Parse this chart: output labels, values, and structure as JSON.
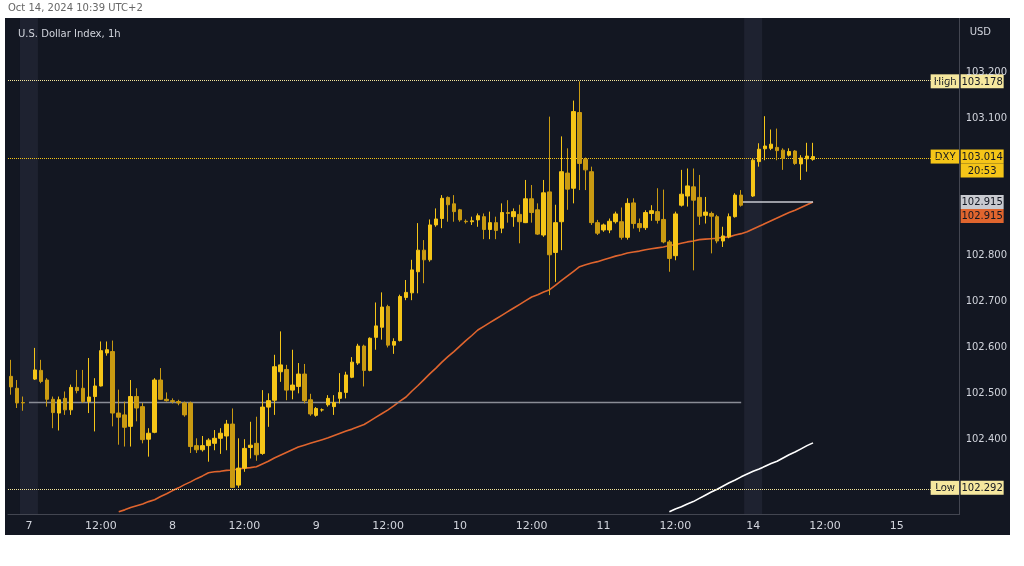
{
  "chart_data": {
    "type": "candlestick",
    "title": "U.S. Dollar Index, 1h",
    "ylabel": "USD",
    "colors": [
      "#c99a12",
      "#c99a12",
      "#c99a12",
      null,
      "#f5c518",
      "#c99a12",
      "#c99a12",
      "#c99a12",
      "#f5c518",
      "#c99a12",
      "#f5c518",
      "#c99a12",
      "#c99a12",
      "#f5c518",
      "#f5c518",
      "#f5c518",
      "#f5c518",
      "#c99a12",
      "#c99a12",
      "#c99a12",
      "#f5c518",
      "#c99a12",
      "#c99a12",
      "#f5c518",
      "#f5c518",
      "#c99a12",
      "#c99a12",
      "#c99a12",
      "#c99a12",
      "#c99a12",
      "#c99a12",
      "#c99a12",
      "#f5c518",
      "#f5c518",
      "#f5c518",
      "#f5c518",
      "#f5c518",
      "#c99a12",
      "#f5c518",
      "#f5c518",
      "#f5c518",
      "#c99a12",
      "#f5c518",
      "#f5c518",
      "#f5c518",
      "#f5c518",
      "#c99a12",
      "#f5c518",
      "#f5c518",
      "#c99a12",
      "#c99a12",
      "#f5c518",
      "#f5c518",
      "#f5c518",
      "#f5c518",
      "#f5c518",
      "#f5c518",
      "#f5c518",
      "#f5c518",
      "#c99a12",
      "#f5c518",
      "#f5c518",
      "#f5c518",
      "#c99a12",
      "#f5c518",
      "#f5c518",
      "#f5c518",
      "#f5c518",
      "#f5c518",
      "#c99a12",
      "#f5c518",
      "#f5c518",
      "#f5c518",
      "#c99a12",
      "#c99a12",
      "#c99a12",
      "#c99a12",
      "#f5c518",
      "#f5c518",
      "#c99a12",
      "#f5c518",
      "#c99a12",
      "#f5c518",
      "#c99a12",
      "#f5c518",
      "#c99a12",
      "#f5c518",
      "#c99a12",
      "#c99a12",
      "#f5c518",
      "#c99a12",
      "#f5c518",
      "#f5c518",
      "#c99a12",
      "#f5c518",
      "#c99a12",
      "#c99a12",
      "#c99a12",
      "#c99a12",
      "#f5c518",
      "#f5c518",
      "#f5c518",
      "#c99a12",
      "#f5c518",
      "#c99a12",
      "#c99a12",
      "#f5c518",
      "#f5c518",
      "#c99a12",
      "#c99a12",
      "#c99a12",
      "#f5c518",
      "#f5c518",
      "#f5c518",
      "#c99a12",
      "#c99a12",
      "#f5c518",
      "#c99a12",
      "#c99a12",
      "#f5c518",
      "#f5c518",
      "#f5c518",
      "#c99a12",
      null,
      "#f5c518",
      "#f5c518",
      "#f5c518",
      "#f5c518",
      "#c99a12",
      "#c99a12",
      "#f5c518",
      "#c99a12",
      "#f5c518",
      "#f5c518",
      "#f5c518",
      null,
      null,
      null,
      null,
      null,
      null,
      null,
      null,
      null,
      null,
      null,
      null,
      null,
      null,
      null,
      null,
      null,
      null,
      null,
      null,
      null,
      null,
      null,
      null
    ],
    "annotations": [
      "Oct 14, 2024 10:39 UTC+2",
      {
        "text": "103.178",
        "y": 103.178
      },
      {
        "text": "103.014",
        "y": 103.014
      },
      "20:53",
      {
        "text": "102.915",
        "y": 102.915
      },
      "102.915",
      {
        "text": "102.292",
        "y": 102.292
      }
    ],
    "categories": [
      null,
      null,
      null,
      "7",
      null,
      null,
      null,
      null,
      null,
      null,
      null,
      null,
      null,
      null,
      null,
      "12:00",
      null,
      null,
      null,
      null,
      null,
      null,
      null,
      null,
      null,
      null,
      null,
      "8",
      null,
      null,
      null,
      null,
      null,
      null,
      null,
      null,
      null,
      null,
      null,
      "12:00",
      null,
      null,
      null,
      null,
      null,
      null,
      null,
      null,
      null,
      null,
      null,
      "9",
      null,
      null,
      null,
      null,
      null,
      null,
      null,
      null,
      null,
      null,
      null,
      "12:00",
      null,
      null,
      null,
      null,
      null,
      null,
      null,
      null,
      null,
      null,
      null,
      "10",
      null,
      null,
      null,
      null,
      null,
      null,
      null,
      null,
      null,
      null,
      null,
      "12:00",
      null,
      null,
      null,
      null,
      null,
      null,
      null,
      null,
      null,
      null,
      null,
      "11",
      null,
      null,
      null,
      null,
      null,
      null,
      null,
      null,
      null,
      null,
      null,
      "12:00",
      null,
      null,
      null,
      null,
      null,
      null,
      null,
      null,
      null,
      null,
      null,
      null,
      "14",
      null,
      null,
      null,
      null,
      null,
      null,
      null,
      null,
      null,
      null,
      null,
      "12:00",
      null,
      null,
      null,
      null,
      null,
      null,
      null,
      null,
      null,
      null,
      null,
      "15",
      null,
      null,
      null,
      null,
      null,
      null,
      null,
      null,
      null,
      null
    ],
    "ohlc": [
      [
        102.535,
        102.571,
        102.495,
        102.512
      ],
      [
        102.509,
        102.527,
        102.466,
        102.477
      ],
      [
        102.478,
        102.491,
        102.46,
        102.477
      ],
      null,
      [
        102.529,
        102.597,
        102.527,
        102.549
      ],
      [
        102.548,
        102.571,
        102.52,
        102.524
      ],
      [
        102.527,
        102.531,
        102.469,
        102.485
      ],
      [
        102.485,
        102.491,
        102.422,
        102.456
      ],
      [
        102.455,
        102.491,
        102.417,
        102.484
      ],
      [
        102.487,
        102.502,
        102.451,
        102.462
      ],
      [
        102.462,
        102.517,
        102.451,
        102.511
      ],
      [
        102.511,
        102.549,
        102.498,
        102.504
      ],
      [
        102.509,
        102.549,
        102.477,
        102.48
      ],
      [
        102.48,
        102.575,
        102.455,
        102.49
      ],
      [
        102.491,
        102.531,
        102.415,
        102.514
      ],
      [
        102.514,
        102.611,
        102.513,
        102.591
      ],
      [
        102.586,
        102.611,
        102.58,
        102.593
      ],
      [
        102.589,
        102.613,
        102.426,
        102.455
      ],
      [
        102.455,
        102.506,
        102.386,
        102.446
      ],
      [
        102.451,
        102.48,
        102.382,
        102.424
      ],
      [
        102.426,
        102.527,
        102.382,
        102.491
      ],
      [
        102.491,
        102.509,
        102.437,
        102.466
      ],
      [
        102.469,
        102.477,
        102.389,
        102.397
      ],
      [
        102.398,
        102.422,
        102.36,
        102.411
      ],
      [
        102.413,
        102.531,
        102.411,
        102.527
      ],
      [
        102.527,
        102.553,
        102.484,
        102.485
      ],
      [
        102.485,
        102.5,
        102.48,
        102.482
      ],
      [
        102.482,
        102.487,
        102.476,
        102.48
      ],
      [
        102.48,
        102.484,
        102.472,
        102.477
      ],
      [
        102.477,
        102.48,
        102.447,
        102.451
      ],
      [
        102.477,
        102.48,
        102.368,
        102.382
      ],
      [
        102.384,
        102.4,
        102.368,
        102.375
      ],
      [
        102.375,
        102.405,
        102.371,
        102.384
      ],
      [
        102.384,
        102.4,
        102.349,
        102.396
      ],
      [
        102.389,
        102.418,
        102.374,
        102.4
      ],
      [
        102.4,
        102.422,
        102.366,
        102.411
      ],
      [
        102.405,
        102.44,
        102.374,
        102.431
      ],
      [
        102.431,
        102.465,
        102.293,
        102.293
      ],
      [
        102.298,
        102.4,
        102.292,
        102.335
      ],
      [
        102.335,
        102.398,
        102.327,
        102.378
      ],
      [
        102.38,
        102.436,
        102.356,
        102.385
      ],
      [
        102.389,
        102.447,
        102.351,
        102.364
      ],
      [
        102.367,
        102.505,
        102.364,
        102.468
      ],
      [
        102.468,
        102.498,
        102.425,
        102.482
      ],
      [
        102.483,
        102.582,
        102.451,
        102.556
      ],
      [
        102.545,
        102.633,
        102.523,
        102.56
      ],
      [
        102.55,
        102.56,
        102.483,
        102.505
      ],
      [
        102.505,
        102.593,
        102.485,
        102.516
      ],
      [
        102.513,
        102.564,
        102.498,
        102.54
      ],
      [
        102.54,
        102.562,
        102.476,
        102.482
      ],
      [
        102.484,
        102.497,
        102.449,
        102.453
      ],
      [
        102.45,
        102.468,
        102.447,
        102.465
      ],
      [
        102.462,
        102.465,
        102.458,
        102.462
      ],
      [
        102.473,
        102.494,
        102.469,
        102.487
      ],
      [
        102.469,
        102.494,
        102.451,
        102.478
      ],
      [
        102.487,
        102.542,
        102.476,
        102.5
      ],
      [
        102.5,
        102.545,
        102.487,
        102.538
      ],
      [
        102.533,
        102.577,
        102.531,
        102.566
      ],
      [
        102.564,
        102.606,
        102.56,
        102.601
      ],
      [
        102.601,
        102.604,
        102.513,
        102.548
      ],
      [
        102.548,
        102.62,
        102.546,
        102.618
      ],
      [
        102.62,
        102.696,
        102.593,
        102.645
      ],
      [
        102.642,
        102.718,
        102.615,
        102.686
      ],
      [
        102.687,
        102.691,
        102.598,
        102.603
      ],
      [
        102.603,
        102.618,
        102.584,
        102.611
      ],
      [
        102.613,
        102.713,
        102.611,
        102.709
      ],
      [
        102.707,
        102.745,
        102.701,
        102.718
      ],
      [
        102.717,
        102.789,
        102.701,
        102.767
      ],
      [
        102.763,
        102.869,
        102.716,
        102.81
      ],
      [
        102.81,
        102.832,
        102.738,
        102.789
      ],
      [
        102.789,
        102.877,
        102.785,
        102.865
      ],
      [
        102.865,
        102.901,
        102.861,
        102.878
      ],
      [
        102.879,
        102.93,
        102.858,
        102.923
      ],
      [
        102.925,
        102.927,
        102.872,
        102.909
      ],
      [
        102.911,
        102.93,
        102.872,
        102.894
      ],
      [
        102.898,
        102.9,
        102.872,
        102.876
      ],
      [
        102.873,
        102.877,
        102.868,
        102.872
      ],
      [
        102.872,
        102.883,
        102.865,
        102.874
      ],
      [
        102.876,
        102.89,
        102.861,
        102.885
      ],
      [
        102.883,
        102.89,
        102.834,
        102.855
      ],
      [
        102.855,
        102.894,
        102.834,
        102.87
      ],
      [
        102.87,
        102.883,
        102.834,
        102.853
      ],
      [
        102.858,
        102.912,
        102.847,
        102.892
      ],
      [
        102.892,
        102.919,
        102.87,
        102.89
      ],
      [
        102.883,
        102.901,
        102.861,
        102.894
      ],
      [
        102.888,
        102.909,
        102.825,
        102.872
      ],
      [
        102.87,
        102.963,
        102.869,
        102.922
      ],
      [
        102.922,
        102.952,
        102.87,
        102.892
      ],
      [
        102.898,
        102.912,
        102.843,
        102.845
      ],
      [
        102.843,
        102.963,
        102.839,
        102.935
      ],
      [
        102.937,
        103.101,
        102.712,
        102.8
      ],
      [
        102.805,
        102.909,
        102.741,
        102.87
      ],
      [
        102.872,
        103.058,
        102.81,
        102.981
      ],
      [
        102.978,
        103.032,
        102.898,
        102.943
      ],
      [
        102.945,
        103.136,
        102.912,
        103.112
      ],
      [
        103.11,
        103.178,
        102.941,
        102.999
      ],
      [
        103.008,
        103.012,
        102.941,
        102.985
      ],
      [
        102.981,
        102.992,
        102.865,
        102.87
      ],
      [
        102.87,
        102.876,
        102.843,
        102.847
      ],
      [
        102.854,
        102.868,
        102.85,
        102.865
      ],
      [
        102.854,
        102.879,
        102.847,
        102.873
      ],
      [
        102.872,
        102.894,
        102.868,
        102.889
      ],
      [
        102.872,
        102.903,
        102.833,
        102.838
      ],
      [
        102.838,
        102.923,
        102.833,
        102.912
      ],
      [
        102.913,
        102.923,
        102.857,
        102.868
      ],
      [
        102.868,
        102.879,
        102.85,
        102.859
      ],
      [
        102.859,
        102.897,
        102.854,
        102.892
      ],
      [
        102.89,
        102.908,
        102.874,
        102.896
      ],
      [
        102.894,
        102.945,
        102.868,
        102.875
      ],
      [
        102.877,
        102.942,
        102.825,
        102.828
      ],
      [
        102.828,
        102.832,
        102.763,
        102.792
      ],
      [
        102.798,
        102.894,
        102.788,
        102.889
      ],
      [
        102.908,
        102.985,
        102.905,
        102.932
      ],
      [
        102.928,
        102.988,
        102.905,
        102.95
      ],
      [
        102.948,
        102.988,
        102.766,
        102.919
      ],
      [
        102.925,
        102.974,
        102.865,
        102.884
      ],
      [
        102.886,
        102.926,
        102.868,
        102.893
      ],
      [
        102.89,
        102.894,
        102.803,
        102.884
      ],
      [
        102.883,
        102.887,
        102.825,
        102.83
      ],
      [
        102.83,
        102.861,
        102.817,
        102.841
      ],
      [
        102.839,
        102.89,
        102.836,
        102.883
      ],
      [
        102.883,
        102.934,
        102.881,
        102.93
      ],
      [
        102.93,
        102.941,
        102.905,
        102.908
      ],
      null,
      [
        102.928,
        103.01,
        102.926,
        103.006
      ],
      [
        103.003,
        103.043,
        102.992,
        103.03
      ],
      [
        103.031,
        103.102,
        103.006,
        103.037
      ],
      [
        103.032,
        103.073,
        103.028,
        103.041
      ],
      [
        103.034,
        103.075,
        103.006,
        103.027
      ],
      [
        103.028,
        103.032,
        102.985,
        103.01
      ],
      [
        103.017,
        103.032,
        103.014,
        103.025
      ],
      [
        103.026,
        103.028,
        102.996,
        102.999
      ],
      [
        102.998,
        103.017,
        102.963,
        103.011
      ],
      [
        103.009,
        103.044,
        102.981,
        103.015
      ],
      [
        103.008,
        103.044,
        103.005,
        103.014
      ],
      null,
      null,
      null,
      null,
      null,
      null,
      null,
      null,
      null,
      null,
      null,
      null,
      null,
      null,
      null,
      null,
      null,
      null,
      null,
      null,
      null,
      null,
      null,
      null
    ],
    "series": [
      {
        "type": "line",
        "color": "#e0652e",
        "values": [
          null,
          null,
          null,
          null,
          null,
          null,
          null,
          null,
          null,
          null,
          null,
          null,
          null,
          null,
          null,
          null,
          null,
          null,
          102.24,
          102.244,
          102.249,
          102.253,
          102.257,
          102.262,
          102.266,
          102.273,
          102.279,
          102.286,
          102.292,
          102.299,
          102.305,
          102.312,
          102.318,
          102.325,
          102.327,
          102.328,
          102.33,
          102.331,
          102.333,
          102.335,
          102.336,
          102.338,
          102.344,
          102.35,
          102.357,
          102.363,
          102.369,
          102.375,
          102.381,
          102.385,
          102.389,
          102.393,
          102.397,
          102.401,
          102.406,
          102.411,
          102.416,
          102.42,
          102.425,
          102.43,
          102.438,
          102.446,
          102.454,
          102.462,
          102.471,
          102.481,
          102.49,
          102.503,
          102.515,
          102.528,
          102.541,
          102.553,
          102.566,
          102.578,
          102.589,
          102.601,
          102.613,
          102.624,
          102.636,
          102.644,
          102.652,
          102.66,
          102.668,
          102.676,
          102.684,
          102.692,
          102.7,
          102.708,
          102.713,
          102.719,
          102.724,
          102.734,
          102.744,
          102.754,
          102.764,
          102.774,
          102.778,
          102.782,
          102.785,
          102.789,
          102.793,
          102.797,
          102.8,
          102.804,
          102.806,
          102.808,
          102.811,
          102.813,
          102.815,
          102.817,
          102.82,
          102.822,
          102.825,
          102.828,
          102.83,
          102.833,
          102.834,
          102.835,
          102.836,
          102.838,
          102.839,
          102.843,
          102.846,
          102.85,
          102.856,
          102.862,
          102.868,
          102.874,
          102.88,
          102.886,
          102.892,
          102.897,
          102.903,
          102.909,
          102.915,
          null,
          null,
          null,
          null,
          null,
          null,
          null,
          null,
          null,
          null,
          null,
          null,
          null,
          null,
          null,
          null,
          null,
          null,
          null,
          null,
          null,
          null,
          null,
          null
        ]
      },
      {
        "type": "line",
        "color": "#ffffff",
        "values": [
          null,
          null,
          null,
          null,
          null,
          null,
          null,
          null,
          null,
          null,
          null,
          null,
          null,
          null,
          null,
          null,
          null,
          null,
          null,
          null,
          null,
          null,
          null,
          null,
          null,
          null,
          null,
          null,
          null,
          null,
          null,
          null,
          null,
          null,
          null,
          null,
          null,
          null,
          null,
          null,
          null,
          null,
          null,
          null,
          null,
          null,
          null,
          null,
          null,
          null,
          null,
          null,
          null,
          null,
          null,
          null,
          null,
          null,
          null,
          null,
          null,
          null,
          null,
          null,
          null,
          null,
          null,
          null,
          null,
          null,
          null,
          null,
          null,
          null,
          null,
          null,
          null,
          null,
          null,
          null,
          null,
          null,
          null,
          null,
          null,
          null,
          null,
          null,
          null,
          null,
          null,
          null,
          null,
          null,
          null,
          null,
          null,
          null,
          null,
          null,
          null,
          null,
          null,
          null,
          null,
          null,
          null,
          null,
          null,
          null,
          102.24,
          102.246,
          102.251,
          102.257,
          102.262,
          102.269,
          102.276,
          102.283,
          102.289,
          102.296,
          102.303,
          102.309,
          102.316,
          102.322,
          102.328,
          102.333,
          102.339,
          102.345,
          102.35,
          102.357,
          102.364,
          102.37,
          102.377,
          102.384,
          102.39,
          null,
          null,
          null,
          null,
          null,
          null,
          null,
          null,
          null,
          null,
          null,
          null,
          null,
          null,
          null,
          null,
          null,
          null,
          null,
          null,
          null,
          null,
          null,
          null
        ]
      },
      {
        "type": "line",
        "color": "#8a8d96",
        "values": [
          null,
          null,
          null,
          102.478,
          102.478,
          102.478,
          102.478,
          102.478,
          102.478,
          102.478,
          102.478,
          102.478,
          102.478,
          102.478,
          102.478,
          102.478,
          102.478,
          102.478,
          102.478,
          102.478,
          102.478,
          102.478,
          102.478,
          102.478,
          102.478,
          102.478,
          102.478,
          102.478,
          102.478,
          102.478,
          102.478,
          102.478,
          102.478,
          102.478,
          102.478,
          102.478,
          102.478,
          102.478,
          102.478,
          102.478,
          102.478,
          102.478,
          102.478,
          102.478,
          102.478,
          102.478,
          102.478,
          102.478,
          102.478,
          102.478,
          102.478,
          102.478,
          102.478,
          102.478,
          102.478,
          102.478,
          102.478,
          102.478,
          102.478,
          102.478,
          102.478,
          102.478,
          102.478,
          102.478,
          102.478,
          102.478,
          102.478,
          102.478,
          102.478,
          102.478,
          102.478,
          102.478,
          102.478,
          102.478,
          102.478,
          102.478,
          102.478,
          102.478,
          102.478,
          102.478,
          102.478,
          102.478,
          102.478,
          102.478,
          102.478,
          102.478,
          102.478,
          102.478,
          102.478,
          102.478,
          102.478,
          102.478,
          102.478,
          102.478,
          102.478,
          102.478,
          102.478,
          102.478,
          102.478,
          102.478,
          102.478,
          102.478,
          102.478,
          102.478,
          102.478,
          102.478,
          102.478,
          102.478,
          102.478,
          102.478,
          102.478,
          102.478,
          102.478,
          102.478,
          102.478,
          102.478,
          102.478,
          102.478,
          102.478,
          102.478,
          102.478,
          102.478,
          102.478,
          null,
          null,
          null,
          null,
          null,
          null,
          null,
          null,
          null,
          null,
          null,
          null,
          null,
          null,
          null,
          null,
          null,
          null,
          null,
          null,
          null,
          null,
          null,
          null,
          null,
          null,
          null,
          null,
          null,
          null,
          null,
          null,
          null,
          null,
          null,
          null
        ]
      },
      {
        "type": "line",
        "color": "#c8cad0",
        "values": [
          null,
          null,
          null,
          null,
          null,
          null,
          null,
          null,
          null,
          null,
          null,
          null,
          null,
          null,
          null,
          null,
          null,
          null,
          null,
          null,
          null,
          null,
          null,
          null,
          null,
          null,
          null,
          null,
          null,
          null,
          null,
          null,
          null,
          null,
          null,
          null,
          null,
          null,
          null,
          null,
          null,
          null,
          null,
          null,
          null,
          null,
          null,
          null,
          null,
          null,
          null,
          null,
          null,
          null,
          null,
          null,
          null,
          null,
          null,
          null,
          null,
          null,
          null,
          null,
          null,
          null,
          null,
          null,
          null,
          null,
          null,
          null,
          null,
          null,
          null,
          null,
          null,
          null,
          null,
          null,
          null,
          null,
          null,
          null,
          null,
          null,
          null,
          null,
          null,
          null,
          null,
          null,
          null,
          null,
          null,
          null,
          null,
          null,
          null,
          null,
          null,
          null,
          null,
          null,
          null,
          null,
          null,
          null,
          null,
          null,
          null,
          null,
          null,
          null,
          null,
          null,
          null,
          null,
          null,
          null,
          null,
          null,
          102.915,
          102.915,
          102.915,
          102.915,
          102.915,
          102.915,
          102.915,
          102.915,
          102.915,
          102.915,
          102.915,
          102.915,
          102.915,
          null,
          null,
          null,
          null,
          null,
          null,
          null,
          null,
          null,
          null,
          null,
          null,
          null,
          null,
          null,
          null,
          null,
          null,
          null,
          null,
          null,
          null,
          null,
          null
        ]
      }
    ],
    "ref_lines": [
      {
        "axis": "y",
        "value": 103.178,
        "label": "High",
        "color": "#f5e79e",
        "line_style": "dotted"
      },
      {
        "axis": "y",
        "value": 103.014,
        "label": "DXY",
        "color": "#f5c518",
        "line_style": "dotted"
      },
      {
        "axis": "y",
        "value": 102.292,
        "label": "Low",
        "color": "#f5e79e",
        "line_style": "dotted"
      }
    ],
    "bands": [
      {
        "axis": "x",
        "from": "7",
        "to": "7",
        "color": "#1e2230"
      },
      {
        "axis": "x",
        "from": "14",
        "to": "14",
        "color": "#1e2230"
      }
    ],
    "ylim": [
      102.235,
      103.316
    ],
    "yticks": [
      {
        "value": 102.4,
        "label": "102.400"
      },
      {
        "value": 102.5,
        "label": "102.500"
      },
      {
        "value": 102.6,
        "label": "102.600"
      },
      {
        "value": 102.7,
        "label": "102.700"
      },
      {
        "value": 102.8,
        "label": "102.800"
      },
      {
        "value": 103.1,
        "label": "103.100"
      },
      {
        "value": 103.2,
        "label": "103.200"
      }
    ],
    "grid": false
  }
}
